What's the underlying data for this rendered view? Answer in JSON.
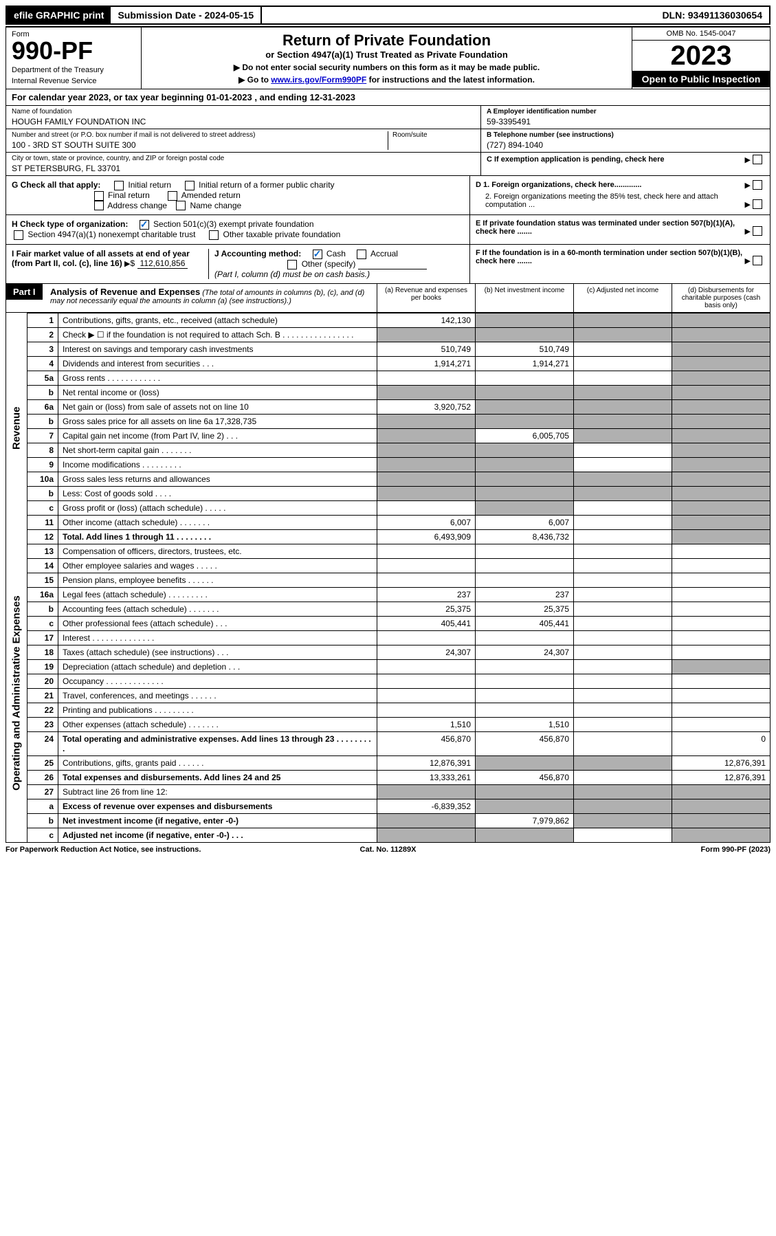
{
  "topbar": {
    "efile": "efile GRAPHIC print",
    "submission": "Submission Date - 2024-05-15",
    "dln": "DLN: 93491136030654"
  },
  "header": {
    "form_label": "Form",
    "form_number": "990-PF",
    "dept": "Department of the Treasury",
    "irs": "Internal Revenue Service",
    "title": "Return of Private Foundation",
    "subtitle": "or Section 4947(a)(1) Trust Treated as Private Foundation",
    "instr1": "▶ Do not enter social security numbers on this form as it may be made public.",
    "instr2_pre": "▶ Go to ",
    "instr2_link": "www.irs.gov/Form990PF",
    "instr2_post": " for instructions and the latest information.",
    "omb": "OMB No. 1545-0047",
    "year": "2023",
    "open": "Open to Public Inspection"
  },
  "calendar": "For calendar year 2023, or tax year beginning 01-01-2023                                   , and ending 12-31-2023",
  "info": {
    "name_label": "Name of foundation",
    "name": "HOUGH FAMILY FOUNDATION INC",
    "addr_label": "Number and street (or P.O. box number if mail is not delivered to street address)",
    "addr": "100 - 3RD ST SOUTH SUITE 300",
    "room_label": "Room/suite",
    "city_label": "City or town, state or province, country, and ZIP or foreign postal code",
    "city": "ST PETERSBURG, FL  33701",
    "ein_label": "A Employer identification number",
    "ein": "59-3395491",
    "phone_label": "B Telephone number (see instructions)",
    "phone": "(727) 894-1040",
    "c_label": "C If exemption application is pending, check here",
    "d1_label": "D 1. Foreign organizations, check here.............",
    "d2_label": "2. Foreign organizations meeting the 85% test, check here and attach computation ...",
    "e_label": "E  If private foundation status was terminated under section 507(b)(1)(A), check here .......",
    "f_label": "F  If the foundation is in a 60-month termination under section 507(b)(1)(B), check here ......."
  },
  "checks": {
    "g_label": "G Check all that apply:",
    "initial": "Initial return",
    "initial_former": "Initial return of a former public charity",
    "final": "Final return",
    "amended": "Amended return",
    "addr_change": "Address change",
    "name_change": "Name change",
    "h_label": "H Check type of organization:",
    "h_501c3": "Section 501(c)(3) exempt private foundation",
    "h_4947": "Section 4947(a)(1) nonexempt charitable trust",
    "h_other": "Other taxable private foundation",
    "i_label": "I Fair market value of all assets at end of year (from Part II, col. (c), line 16)",
    "i_value": "112,610,856",
    "j_label": "J Accounting method:",
    "j_cash": "Cash",
    "j_accrual": "Accrual",
    "j_other": "Other (specify)",
    "j_note": "(Part I, column (d) must be on cash basis.)"
  },
  "part1": {
    "label": "Part I",
    "title": "Analysis of Revenue and Expenses",
    "title_sub": "(The total of amounts in columns (b), (c), and (d) may not necessarily equal the amounts in column (a) (see instructions).)",
    "col_a": "(a)    Revenue and expenses per books",
    "col_b": "(b)    Net investment income",
    "col_c": "(c)    Adjusted net income",
    "col_d": "(d)    Disbursements for charitable purposes (cash basis only)"
  },
  "sections": {
    "revenue": "Revenue",
    "opex": "Operating and Administrative Expenses"
  },
  "rows": [
    {
      "n": "1",
      "desc": "Contributions, gifts, grants, etc., received (attach schedule)",
      "a": "142,130",
      "b": "",
      "c": "",
      "d": "",
      "shade_b": true,
      "shade_c": true,
      "shade_d": true
    },
    {
      "n": "2",
      "desc": "Check ▶ ☐ if the foundation is not required to attach Sch. B   .  .  .  .  .  .  .  .  .  .  .  .  .  .  .  .",
      "a": "",
      "b": "",
      "c": "",
      "d": "",
      "shade_a": true,
      "shade_b": true,
      "shade_c": true,
      "shade_d": true
    },
    {
      "n": "3",
      "desc": "Interest on savings and temporary cash investments",
      "a": "510,749",
      "b": "510,749",
      "c": "",
      "d": "",
      "shade_d": true
    },
    {
      "n": "4",
      "desc": "Dividends and interest from securities    .   .   .",
      "a": "1,914,271",
      "b": "1,914,271",
      "c": "",
      "d": "",
      "shade_d": true
    },
    {
      "n": "5a",
      "desc": "Gross rents    .   .   .   .   .   .   .   .   .   .   .   .",
      "a": "",
      "b": "",
      "c": "",
      "d": "",
      "shade_d": true
    },
    {
      "n": "b",
      "desc": "Net rental income or (loss)  ",
      "a": "",
      "b": "",
      "c": "",
      "d": "",
      "shade_a": true,
      "shade_b": true,
      "shade_c": true,
      "shade_d": true
    },
    {
      "n": "6a",
      "desc": "Net gain or (loss) from sale of assets not on line 10",
      "a": "3,920,752",
      "b": "",
      "c": "",
      "d": "",
      "shade_b": true,
      "shade_c": true,
      "shade_d": true
    },
    {
      "n": "b",
      "desc": "Gross sales price for all assets on line 6a            17,328,735",
      "a": "",
      "b": "",
      "c": "",
      "d": "",
      "shade_a": true,
      "shade_b": true,
      "shade_c": true,
      "shade_d": true
    },
    {
      "n": "7",
      "desc": "Capital gain net income (from Part IV, line 2)   .   .   .",
      "a": "",
      "b": "6,005,705",
      "c": "",
      "d": "",
      "shade_a": true,
      "shade_c": true,
      "shade_d": true
    },
    {
      "n": "8",
      "desc": "Net short-term capital gain   .   .   .   .   .   .   .",
      "a": "",
      "b": "",
      "c": "",
      "d": "",
      "shade_a": true,
      "shade_b": true,
      "shade_d": true
    },
    {
      "n": "9",
      "desc": "Income modifications  .   .   .   .   .   .   .   .   .",
      "a": "",
      "b": "",
      "c": "",
      "d": "",
      "shade_a": true,
      "shade_b": true,
      "shade_d": true
    },
    {
      "n": "10a",
      "desc": "Gross sales less returns and allowances",
      "a": "",
      "b": "",
      "c": "",
      "d": "",
      "shade_a": true,
      "shade_b": true,
      "shade_c": true,
      "shade_d": true
    },
    {
      "n": "b",
      "desc": "Less: Cost of goods sold    .   .   .   .",
      "a": "",
      "b": "",
      "c": "",
      "d": "",
      "shade_a": true,
      "shade_b": true,
      "shade_c": true,
      "shade_d": true
    },
    {
      "n": "c",
      "desc": "Gross profit or (loss) (attach schedule)    .   .   .   .   .",
      "a": "",
      "b": "",
      "c": "",
      "d": "",
      "shade_b": true,
      "shade_d": true
    },
    {
      "n": "11",
      "desc": "Other income (attach schedule)    .   .   .   .   .   .   .",
      "a": "6,007",
      "b": "6,007",
      "c": "",
      "d": "",
      "shade_d": true
    },
    {
      "n": "12",
      "desc": "Total. Add lines 1 through 11    .   .   .   .   .   .   .   .",
      "a": "6,493,909",
      "b": "8,436,732",
      "c": "",
      "d": "",
      "bold": true,
      "shade_d": true
    },
    {
      "n": "13",
      "desc": "Compensation of officers, directors, trustees, etc.",
      "a": "",
      "b": "",
      "c": "",
      "d": ""
    },
    {
      "n": "14",
      "desc": "Other employee salaries and wages    .   .   .   .   .",
      "a": "",
      "b": "",
      "c": "",
      "d": ""
    },
    {
      "n": "15",
      "desc": "Pension plans, employee benefits   .   .   .   .   .   .",
      "a": "",
      "b": "",
      "c": "",
      "d": ""
    },
    {
      "n": "16a",
      "desc": "Legal fees (attach schedule)  .   .   .   .   .   .   .   .   .",
      "a": "237",
      "b": "237",
      "c": "",
      "d": ""
    },
    {
      "n": "b",
      "desc": "Accounting fees (attach schedule)  .   .   .   .   .   .   .",
      "a": "25,375",
      "b": "25,375",
      "c": "",
      "d": ""
    },
    {
      "n": "c",
      "desc": "Other professional fees (attach schedule)    .   .   .",
      "a": "405,441",
      "b": "405,441",
      "c": "",
      "d": ""
    },
    {
      "n": "17",
      "desc": "Interest  .   .   .   .   .   .   .   .   .   .   .   .   .   .",
      "a": "",
      "b": "",
      "c": "",
      "d": ""
    },
    {
      "n": "18",
      "desc": "Taxes (attach schedule) (see instructions)    .   .   .",
      "a": "24,307",
      "b": "24,307",
      "c": "",
      "d": ""
    },
    {
      "n": "19",
      "desc": "Depreciation (attach schedule) and depletion    .   .   .",
      "a": "",
      "b": "",
      "c": "",
      "d": "",
      "shade_d": true
    },
    {
      "n": "20",
      "desc": "Occupancy  .   .   .   .   .   .   .   .   .   .   .   .   .",
      "a": "",
      "b": "",
      "c": "",
      "d": ""
    },
    {
      "n": "21",
      "desc": "Travel, conferences, and meetings  .   .   .   .   .   .",
      "a": "",
      "b": "",
      "c": "",
      "d": ""
    },
    {
      "n": "22",
      "desc": "Printing and publications  .   .   .   .   .   .   .   .   .",
      "a": "",
      "b": "",
      "c": "",
      "d": ""
    },
    {
      "n": "23",
      "desc": "Other expenses (attach schedule)  .   .   .   .   .   .   .",
      "a": "1,510",
      "b": "1,510",
      "c": "",
      "d": ""
    },
    {
      "n": "24",
      "desc": "Total operating and administrative expenses. Add lines 13 through 23    .   .   .   .   .   .   .   .   .",
      "a": "456,870",
      "b": "456,870",
      "c": "",
      "d": "0",
      "bold": true
    },
    {
      "n": "25",
      "desc": "Contributions, gifts, grants paid    .   .   .   .   .   .",
      "a": "12,876,391",
      "b": "",
      "c": "",
      "d": "12,876,391",
      "shade_b": true,
      "shade_c": true
    },
    {
      "n": "26",
      "desc": "Total expenses and disbursements. Add lines 24 and 25",
      "a": "13,333,261",
      "b": "456,870",
      "c": "",
      "d": "12,876,391",
      "bold": true
    },
    {
      "n": "27",
      "desc": "Subtract line 26 from line 12:",
      "a": "",
      "b": "",
      "c": "",
      "d": "",
      "shade_a": true,
      "shade_b": true,
      "shade_c": true,
      "shade_d": true
    },
    {
      "n": "a",
      "desc": "Excess of revenue over expenses and disbursements",
      "a": "-6,839,352",
      "b": "",
      "c": "",
      "d": "",
      "bold": true,
      "shade_b": true,
      "shade_c": true,
      "shade_d": true
    },
    {
      "n": "b",
      "desc": "Net investment income (if negative, enter -0-)",
      "a": "",
      "b": "7,979,862",
      "c": "",
      "d": "",
      "bold": true,
      "shade_a": true,
      "shade_c": true,
      "shade_d": true
    },
    {
      "n": "c",
      "desc": "Adjusted net income (if negative, enter -0-)   .   .   .",
      "a": "",
      "b": "",
      "c": "",
      "d": "",
      "bold": true,
      "shade_a": true,
      "shade_b": true,
      "shade_d": true
    }
  ],
  "footer": {
    "left": "For Paperwork Reduction Act Notice, see instructions.",
    "center": "Cat. No. 11289X",
    "right": "Form 990-PF (2023)"
  }
}
